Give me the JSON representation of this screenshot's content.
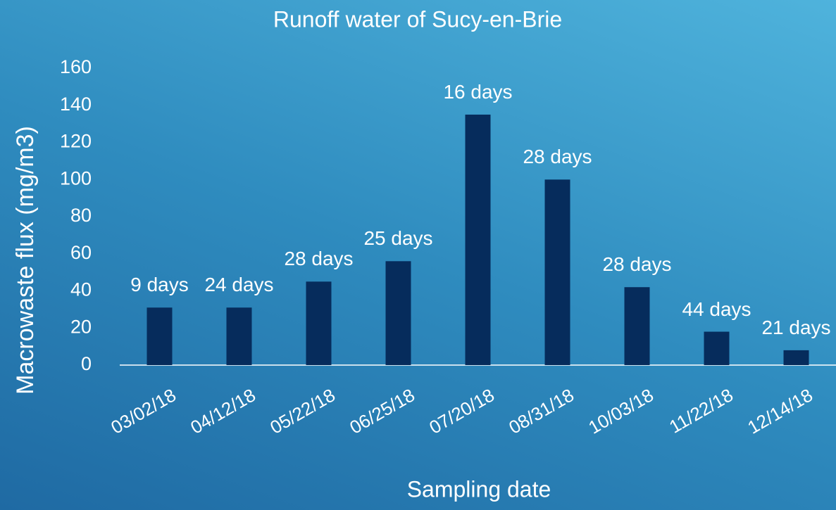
{
  "chart_data": {
    "type": "bar",
    "title": "Runoff water of Sucy-en-Brie",
    "x_label": "Sampling date",
    "y_label": "Macrowaste flux (mg/m3)",
    "categories": [
      "03/02/18",
      "04/12/18",
      "05/22/18",
      "06/25/18",
      "07/20/18",
      "08/31/18",
      "10/03/18",
      "11/22/18",
      "12/14/18"
    ],
    "values": [
      31,
      31,
      45,
      56,
      135,
      100,
      42,
      18,
      8
    ],
    "annotations": [
      "9 days",
      "24 days",
      "28 days",
      "25 days",
      "16 days",
      "28 days",
      "28 days",
      "44 days",
      "21 days"
    ],
    "color": "#062c5c",
    "ylim": [
      0,
      160
    ],
    "yticks": [
      0,
      20,
      40,
      60,
      80,
      100,
      120,
      140,
      160
    ],
    "grid": false
  }
}
